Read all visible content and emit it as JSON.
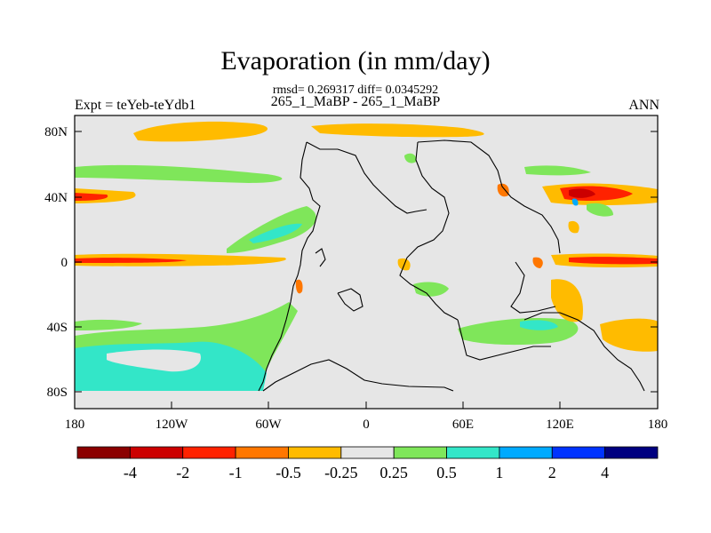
{
  "header": {
    "title": "Evaporation (in mm/day)",
    "stats": "rmsd= 0.269317 diff= 0.0345292",
    "case": "265_1_MaBP - 265_1_MaBP",
    "left": "Expt = teYeb-teYdb1",
    "right": "ANN"
  },
  "map": {
    "lat_ticks": [
      {
        "value": 80,
        "label": "80N"
      },
      {
        "value": 40,
        "label": "40N"
      },
      {
        "value": 0,
        "label": "0"
      },
      {
        "value": -40,
        "label": "40S"
      },
      {
        "value": -80,
        "label": "80S"
      }
    ],
    "lon_ticks": [
      {
        "value": -180,
        "label": "180"
      },
      {
        "value": -120,
        "label": "120W"
      },
      {
        "value": -60,
        "label": "60W"
      },
      {
        "value": 0,
        "label": "0"
      },
      {
        "value": 60,
        "label": "60E"
      },
      {
        "value": 120,
        "label": "120E"
      },
      {
        "value": 180,
        "label": "180"
      }
    ],
    "background_color": "#e6e6e6"
  },
  "colorbar": {
    "colors": [
      "#8b0000",
      "#cc0000",
      "#ff2200",
      "#ff7700",
      "#ffbb00",
      "#e6e6e6",
      "#7fe65a",
      "#33e6c8",
      "#00aaff",
      "#0033ff",
      "#000080"
    ],
    "labels": [
      "-4",
      "-2",
      "-1",
      "-0.5",
      "-0.25",
      "0.25",
      "0.5",
      "1",
      "2",
      "4"
    ]
  }
}
